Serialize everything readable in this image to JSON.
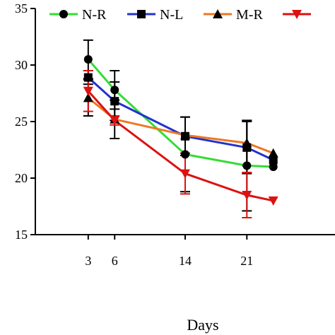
{
  "chart_data": {
    "type": "line",
    "xlabel": "Days",
    "ylabel": "",
    "x_ticks": [
      3,
      6,
      14,
      21
    ],
    "y_ticks": [
      15,
      20,
      25,
      30,
      35
    ],
    "ylim": [
      15,
      35
    ],
    "xlim": [
      -3,
      31
    ],
    "legend_placement": "top",
    "grid": false,
    "series": [
      {
        "name": "N-R",
        "color": "#33dd33",
        "marker": "circle",
        "x": [
          3,
          6,
          14,
          21,
          24
        ],
        "y": [
          30.5,
          27.8,
          22.1,
          21.1,
          21.0
        ],
        "err": [
          1.7,
          1.7,
          3.3,
          4.0,
          0
        ]
      },
      {
        "name": "N-L",
        "color": "#2233cc",
        "marker": "square",
        "x": [
          3,
          6,
          14,
          21,
          24
        ],
        "y": [
          28.9,
          26.8,
          23.7,
          22.7,
          21.6
        ],
        "err": [
          0.6,
          1.7,
          1.7,
          2.3,
          0
        ]
      },
      {
        "name": "M-R",
        "color": "#ee7722",
        "marker": "triangle",
        "x": [
          3,
          6,
          14,
          21,
          24
        ],
        "y": [
          27.1,
          25.2,
          23.8,
          23.1,
          22.2
        ],
        "err": [
          1.6,
          1.7,
          1.6,
          2.0,
          0
        ]
      },
      {
        "name": "",
        "color": "#dd1111",
        "marker": "triangle-down",
        "x": [
          3,
          6,
          14,
          21,
          24
        ],
        "y": [
          27.7,
          25.1,
          20.4,
          18.5,
          18.0
        ],
        "err": [
          1.8,
          0.4,
          1.8,
          2.0,
          0
        ]
      }
    ]
  }
}
